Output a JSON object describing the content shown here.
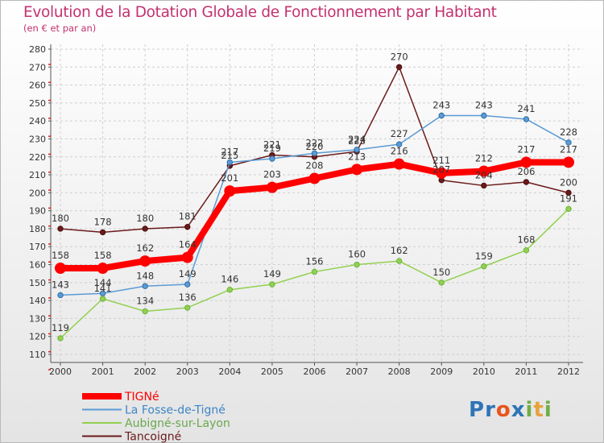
{
  "chart_data": {
    "type": "line",
    "title": "Evolution de la Dotation Globale de Fonctionnement par Habitant",
    "subtitle": "(en € et par an)",
    "xlabel": "",
    "ylabel": "",
    "x": [
      "2000",
      "2001",
      "2002",
      "2003",
      "2004",
      "2005",
      "2006",
      "2007",
      "2008",
      "2009",
      "2010",
      "2011",
      "2012"
    ],
    "ylim": [
      110,
      280
    ],
    "yticks": [
      110,
      120,
      130,
      140,
      150,
      160,
      170,
      180,
      190,
      200,
      210,
      220,
      230,
      240,
      250,
      260,
      270,
      280
    ],
    "grid": true,
    "legend_position": "bottom-left",
    "series": [
      {
        "name": "Tancoigné",
        "color": "#6b1a1a",
        "values": [
          180,
          178,
          180,
          181,
          215,
          221,
          220,
          223,
          270,
          207,
          204,
          206,
          200
        ]
      },
      {
        "name": "La Fosse-de-Tigné",
        "color": "#5b9bd5",
        "values": [
          143,
          144,
          148,
          149,
          217,
          219,
          222,
          224,
          227,
          243,
          243,
          241,
          228
        ]
      },
      {
        "name": "Aubigné-sur-Layon",
        "color": "#92d050",
        "values": [
          119,
          141,
          134,
          136,
          146,
          149,
          156,
          160,
          162,
          150,
          159,
          168,
          191
        ]
      },
      {
        "name": "TIGNé",
        "color": "#ff0000",
        "values": [
          158,
          158,
          162,
          164,
          201,
          203,
          208,
          213,
          216,
          211,
          212,
          217,
          217
        ]
      }
    ],
    "legend_order": [
      "TIGNé",
      "La Fosse-de-Tigné",
      "Aubigné-sur-Layon",
      "Tancoigné"
    ]
  },
  "logo": {
    "text": "Proxiti",
    "letters": [
      "P",
      "r",
      "o",
      "x",
      "i",
      "t",
      "i"
    ],
    "colors": [
      "#2e75b6",
      "#2e75b6",
      "#e8541d",
      "#2e75b6",
      "#70ad47",
      "#e8a23b",
      "#70ad47"
    ]
  }
}
